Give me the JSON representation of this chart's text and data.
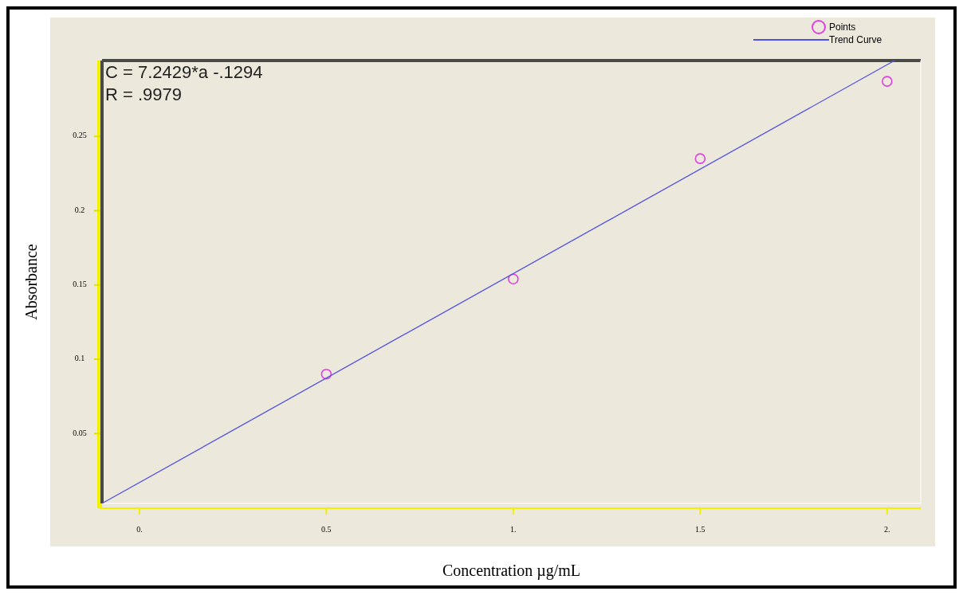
{
  "chart_data": {
    "type": "scatter",
    "xlabel": "Concentration µg/mL",
    "ylabel": "Absorbance",
    "annotations": [
      "C = 7.2429*a -.1294",
      "R = .9979"
    ],
    "xlim": [
      -0.1,
      2.09
    ],
    "ylim": [
      0.003,
      0.301
    ],
    "xticks": [
      {
        "value": 0,
        "label": "0."
      },
      {
        "value": 0.5,
        "label": "0.5"
      },
      {
        "value": 1,
        "label": "1."
      },
      {
        "value": 1.5,
        "label": "1.5"
      },
      {
        "value": 2,
        "label": "2."
      }
    ],
    "yticks": [
      0.05,
      0.1,
      0.15,
      0.2,
      0.25
    ],
    "legend": "top right",
    "grid": false,
    "series": [
      {
        "name": "Points",
        "marker": "circle",
        "color": "#e040e0",
        "x": [
          0.5,
          1,
          1.5,
          2
        ],
        "values": [
          0.09,
          0.154,
          0.235,
          0.287
        ]
      },
      {
        "name": "Trend Curve",
        "type": "line",
        "color": "#5050e0",
        "x": [
          -0.1,
          2.02
        ],
        "values": [
          0.003,
          0.301
        ]
      }
    ]
  }
}
